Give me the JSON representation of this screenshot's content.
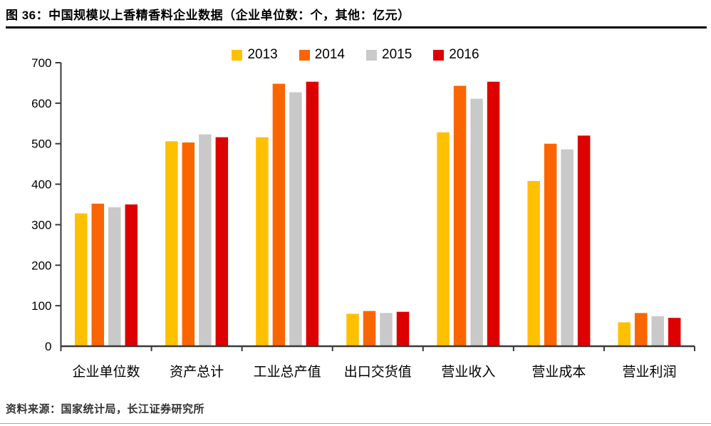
{
  "header": {
    "title": "图 36：中国规模以上香精香料企业数据（企业单位数：个，其他：亿元）"
  },
  "footer": {
    "source": "资料来源：国家统计局，长江证券研究所"
  },
  "chart_data": {
    "type": "bar",
    "title": "中国规模以上香精香料企业数据",
    "xlabel": "",
    "ylabel": "",
    "ylim": [
      0,
      700
    ],
    "y_tick_step": 100,
    "y_ticks": [
      "0",
      "100",
      "200",
      "300",
      "400",
      "500",
      "600",
      "700"
    ],
    "grid": false,
    "legend_position": "top-center",
    "categories": [
      "企业单位数",
      "资产总计",
      "工业总产值",
      "出口交货值",
      "营业收入",
      "营业成本",
      "营业利润"
    ],
    "series": [
      {
        "name": "2013",
        "color": "#FFC000",
        "values": [
          328,
          506,
          516,
          80,
          528,
          408,
          59
        ]
      },
      {
        "name": "2014",
        "color": "#FB6500",
        "values": [
          352,
          503,
          648,
          87,
          643,
          500,
          82
        ]
      },
      {
        "name": "2015",
        "color": "#C9C9C9",
        "values": [
          343,
          523,
          627,
          82,
          611,
          486,
          74
        ]
      },
      {
        "name": "2016",
        "color": "#DD0000",
        "values": [
          350,
          516,
          653,
          85,
          653,
          520,
          70
        ]
      }
    ],
    "axis_color": "#3a3a3a",
    "tick_label_color": "#000000"
  }
}
